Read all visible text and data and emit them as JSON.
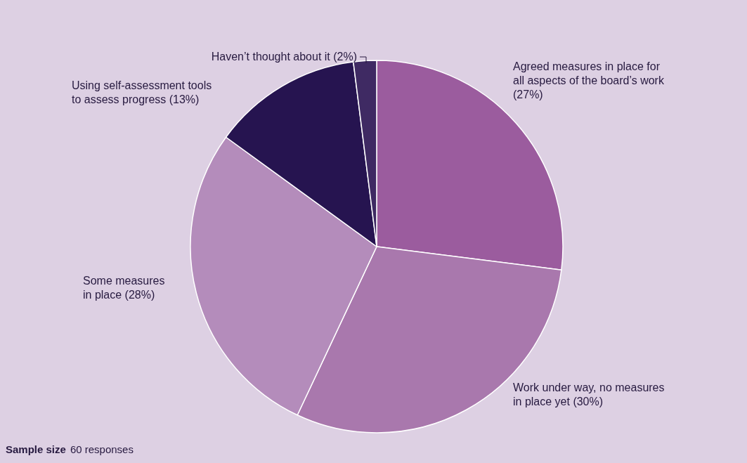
{
  "chart_data": {
    "type": "pie",
    "categories": [
      "Agreed measures in place for all aspects of the board’s work (27%)",
      "Work under way, no measures in place yet (30%)",
      "Some measures in place (28%)",
      "Using self-assessment tools to assess progress (13%)",
      "Haven’t thought about it (2%)"
    ],
    "values": [
      27,
      30,
      28,
      13,
      2
    ],
    "colors": [
      "#9b5c9e",
      "#a978ad",
      "#b48cbb",
      "#261450",
      "#3f2a63"
    ],
    "annotations": [
      "Sample size",
      "60 responses"
    ]
  }
}
